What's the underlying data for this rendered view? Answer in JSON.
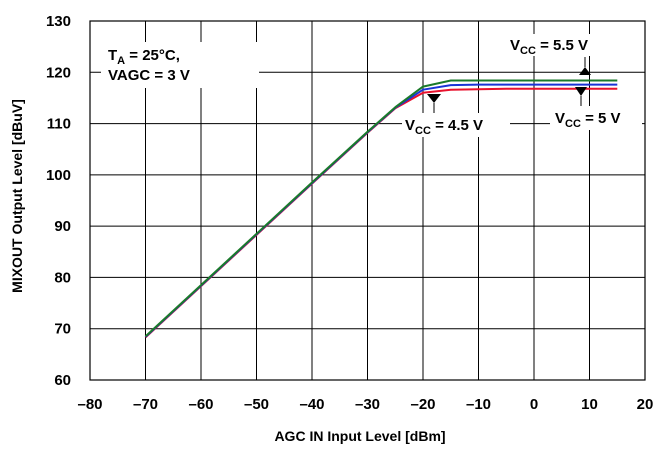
{
  "chart_data": {
    "type": "line",
    "title": "",
    "xlabel": "AGC IN Input Level [dBm]",
    "ylabel": "MIXOUT Output Level [dBuV]",
    "xlim": [
      -80,
      20
    ],
    "ylim": [
      60,
      130
    ],
    "xticks": [
      -80,
      -70,
      -60,
      -50,
      -40,
      -30,
      -20,
      -10,
      0,
      10,
      20
    ],
    "yticks": [
      60,
      70,
      80,
      90,
      100,
      110,
      120,
      130
    ],
    "xtick_labels": [
      "–80",
      "–70",
      "–60",
      "–50",
      "–40",
      "–30",
      "–20",
      "–10",
      "0",
      "10",
      "20"
    ],
    "ytick_labels": [
      "60",
      "70",
      "80",
      "90",
      "100",
      "110",
      "120",
      "130"
    ],
    "grid": true,
    "series": [
      {
        "id": "vcc45",
        "color": "#e8112d",
        "x": [
          -70,
          -60,
          -50,
          -40,
          -30,
          -25,
          -20,
          -15,
          -10,
          -5,
          0,
          5,
          10,
          15
        ],
        "y": [
          68.3,
          78.3,
          88.3,
          98.3,
          108.2,
          113.0,
          116.0,
          116.6,
          116.7,
          116.8,
          116.8,
          116.8,
          116.8,
          116.8
        ]
      },
      {
        "id": "vcc5",
        "color": "#1a33d6",
        "x": [
          -70,
          -60,
          -50,
          -40,
          -30,
          -25,
          -20,
          -15,
          -10,
          -5,
          0,
          5,
          10,
          15
        ],
        "y": [
          68.4,
          78.4,
          88.4,
          98.4,
          108.3,
          113.1,
          116.6,
          117.5,
          117.6,
          117.6,
          117.6,
          117.6,
          117.6,
          117.6
        ]
      },
      {
        "id": "vcc55",
        "color": "#1a7a2a",
        "x": [
          -70,
          -60,
          -50,
          -40,
          -30,
          -25,
          -20,
          -15,
          -10,
          -5,
          0,
          5,
          10,
          15
        ],
        "y": [
          68.5,
          78.5,
          88.5,
          98.5,
          108.4,
          113.2,
          117.2,
          118.4,
          118.4,
          118.4,
          118.4,
          118.4,
          118.4,
          118.4
        ]
      }
    ],
    "annotations": {
      "conditions": {
        "ta_main": "T",
        "ta_sub": "A",
        "ta_rest": " = 25°C,",
        "vagc": "VAGC = 3 V"
      },
      "vcc55": {
        "main": "V",
        "sub": "CC",
        "rest": " = 5.5 V"
      },
      "vcc45": {
        "main": "V",
        "sub": "CC",
        "rest": " = 4.5 V"
      },
      "vcc5": {
        "main": "V",
        "sub": "CC",
        "rest": " = 5 V"
      }
    }
  }
}
